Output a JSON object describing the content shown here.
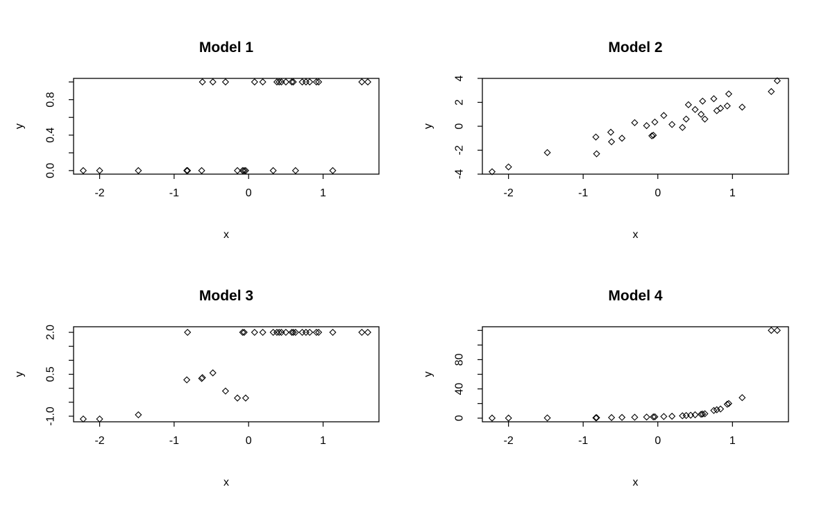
{
  "chart_data": [
    {
      "type": "scatter",
      "title": "Model 1",
      "xlabel": "x",
      "ylabel": "y",
      "xlim": [
        -2.35,
        1.75
      ],
      "ylim": [
        -0.04,
        1.04
      ],
      "xticks": [
        -2,
        -1,
        0,
        1
      ],
      "xtick_labels": [
        "-2",
        "-1",
        "0",
        "1"
      ],
      "yticks": [
        0.0,
        0.2,
        0.4,
        0.6,
        0.8,
        1.0
      ],
      "ytick_labels": [
        "0.0",
        "",
        "0.4",
        "",
        "0.8",
        ""
      ],
      "grid": false,
      "points": [
        {
          "x": -2.22,
          "y": 0
        },
        {
          "x": -2.0,
          "y": 0
        },
        {
          "x": -1.48,
          "y": 0
        },
        {
          "x": -0.83,
          "y": 0
        },
        {
          "x": -0.82,
          "y": 0
        },
        {
          "x": -0.63,
          "y": 0
        },
        {
          "x": -0.15,
          "y": 0
        },
        {
          "x": -0.08,
          "y": 0
        },
        {
          "x": -0.06,
          "y": 0
        },
        {
          "x": -0.04,
          "y": 0
        },
        {
          "x": 0.33,
          "y": 0
        },
        {
          "x": 0.63,
          "y": 0
        },
        {
          "x": 1.13,
          "y": 0
        },
        {
          "x": -0.62,
          "y": 1
        },
        {
          "x": -0.48,
          "y": 1
        },
        {
          "x": -0.31,
          "y": 1
        },
        {
          "x": 0.08,
          "y": 1
        },
        {
          "x": 0.19,
          "y": 1
        },
        {
          "x": 0.38,
          "y": 1
        },
        {
          "x": 0.41,
          "y": 1
        },
        {
          "x": 0.44,
          "y": 1
        },
        {
          "x": 0.5,
          "y": 1
        },
        {
          "x": 0.58,
          "y": 1
        },
        {
          "x": 0.6,
          "y": 1
        },
        {
          "x": 0.72,
          "y": 1
        },
        {
          "x": 0.77,
          "y": 1
        },
        {
          "x": 0.82,
          "y": 1
        },
        {
          "x": 0.91,
          "y": 1
        },
        {
          "x": 0.94,
          "y": 1
        },
        {
          "x": 1.52,
          "y": 1
        },
        {
          "x": 1.6,
          "y": 1
        }
      ]
    },
    {
      "type": "scatter",
      "title": "Model 2",
      "xlabel": "x",
      "ylabel": "y",
      "xlim": [
        -2.35,
        1.75
      ],
      "ylim": [
        -4.0,
        4.0
      ],
      "xticks": [
        -2,
        -1,
        0,
        1
      ],
      "xtick_labels": [
        "-2",
        "-1",
        "0",
        "1"
      ],
      "yticks": [
        -4,
        -2,
        0,
        2,
        4
      ],
      "ytick_labels": [
        "-4",
        "-2",
        "0",
        "2",
        "4"
      ],
      "grid": false,
      "points": [
        {
          "x": -2.22,
          "y": -3.8
        },
        {
          "x": -2.0,
          "y": -3.4
        },
        {
          "x": -1.48,
          "y": -2.2
        },
        {
          "x": -0.83,
          "y": -0.9
        },
        {
          "x": -0.82,
          "y": -2.3
        },
        {
          "x": -0.63,
          "y": -0.5
        },
        {
          "x": -0.62,
          "y": -1.3
        },
        {
          "x": -0.48,
          "y": -1.0
        },
        {
          "x": -0.31,
          "y": 0.3
        },
        {
          "x": -0.15,
          "y": 0.05
        },
        {
          "x": -0.08,
          "y": -0.8
        },
        {
          "x": -0.06,
          "y": -0.75
        },
        {
          "x": -0.04,
          "y": 0.35
        },
        {
          "x": 0.08,
          "y": 0.9
        },
        {
          "x": 0.19,
          "y": 0.15
        },
        {
          "x": 0.33,
          "y": -0.1
        },
        {
          "x": 0.38,
          "y": 0.6
        },
        {
          "x": 0.41,
          "y": 1.8
        },
        {
          "x": 0.5,
          "y": 1.4
        },
        {
          "x": 0.58,
          "y": 1.0
        },
        {
          "x": 0.6,
          "y": 2.1
        },
        {
          "x": 0.63,
          "y": 0.6
        },
        {
          "x": 0.75,
          "y": 2.3
        },
        {
          "x": 0.79,
          "y": 1.3
        },
        {
          "x": 0.84,
          "y": 1.5
        },
        {
          "x": 0.93,
          "y": 1.7
        },
        {
          "x": 0.95,
          "y": 2.7
        },
        {
          "x": 1.13,
          "y": 1.6
        },
        {
          "x": 1.52,
          "y": 2.9
        },
        {
          "x": 1.6,
          "y": 3.8
        }
      ]
    },
    {
      "type": "scatter",
      "title": "Model 3",
      "xlabel": "x",
      "ylabel": "y",
      "xlim": [
        -2.35,
        1.75
      ],
      "ylim": [
        -1.2,
        2.2
      ],
      "xticks": [
        -2,
        -1,
        0,
        1
      ],
      "xtick_labels": [
        "-2",
        "-1",
        "0",
        "1"
      ],
      "yticks": [
        -1.0,
        -0.5,
        0.0,
        0.5,
        1.0,
        1.5,
        2.0
      ],
      "ytick_labels": [
        "-1.0",
        "",
        "",
        "0.5",
        "",
        "",
        "2.0"
      ],
      "grid": false,
      "points": [
        {
          "x": -2.22,
          "y": -1.1
        },
        {
          "x": -2.0,
          "y": -1.1
        },
        {
          "x": -1.48,
          "y": -0.95
        },
        {
          "x": -0.83,
          "y": 0.3
        },
        {
          "x": -0.82,
          "y": 2.0
        },
        {
          "x": -0.63,
          "y": 0.35
        },
        {
          "x": -0.62,
          "y": 0.38
        },
        {
          "x": -0.48,
          "y": 0.55
        },
        {
          "x": -0.31,
          "y": -0.1
        },
        {
          "x": -0.15,
          "y": -0.35
        },
        {
          "x": -0.08,
          "y": 2.0
        },
        {
          "x": -0.06,
          "y": 2.0
        },
        {
          "x": -0.04,
          "y": -0.35
        },
        {
          "x": 0.08,
          "y": 2.0
        },
        {
          "x": 0.19,
          "y": 2.0
        },
        {
          "x": 0.33,
          "y": 2.0
        },
        {
          "x": 0.38,
          "y": 2.0
        },
        {
          "x": 0.41,
          "y": 2.0
        },
        {
          "x": 0.44,
          "y": 2.0
        },
        {
          "x": 0.5,
          "y": 2.0
        },
        {
          "x": 0.58,
          "y": 2.0
        },
        {
          "x": 0.6,
          "y": 2.0
        },
        {
          "x": 0.63,
          "y": 2.0
        },
        {
          "x": 0.72,
          "y": 2.0
        },
        {
          "x": 0.77,
          "y": 2.0
        },
        {
          "x": 0.82,
          "y": 2.0
        },
        {
          "x": 0.91,
          "y": 2.0
        },
        {
          "x": 0.94,
          "y": 2.0
        },
        {
          "x": 1.13,
          "y": 2.0
        },
        {
          "x": 1.52,
          "y": 2.0
        },
        {
          "x": 1.6,
          "y": 2.0
        }
      ]
    },
    {
      "type": "scatter",
      "title": "Model 4",
      "xlabel": "x",
      "ylabel": "y",
      "xlim": [
        -2.35,
        1.75
      ],
      "ylim": [
        -5,
        125
      ],
      "xticks": [
        -2,
        -1,
        0,
        1
      ],
      "xtick_labels": [
        "-2",
        "-1",
        "0",
        "1"
      ],
      "yticks": [
        0,
        20,
        40,
        60,
        80,
        100,
        120
      ],
      "ytick_labels": [
        "0",
        "",
        "40",
        "",
        "80",
        "",
        ""
      ],
      "grid": false,
      "points": [
        {
          "x": -2.22,
          "y": 0.1
        },
        {
          "x": -2.0,
          "y": 0.1
        },
        {
          "x": -1.48,
          "y": 0.3
        },
        {
          "x": -0.83,
          "y": 0.5
        },
        {
          "x": -0.82,
          "y": 0.6
        },
        {
          "x": -0.62,
          "y": 0.8
        },
        {
          "x": -0.48,
          "y": 1.0
        },
        {
          "x": -0.31,
          "y": 1.2
        },
        {
          "x": -0.15,
          "y": 1.5
        },
        {
          "x": -0.06,
          "y": 1.7
        },
        {
          "x": -0.04,
          "y": 1.8
        },
        {
          "x": 0.08,
          "y": 2.2
        },
        {
          "x": 0.19,
          "y": 2.6
        },
        {
          "x": 0.33,
          "y": 3.2
        },
        {
          "x": 0.38,
          "y": 3.6
        },
        {
          "x": 0.44,
          "y": 4.0
        },
        {
          "x": 0.5,
          "y": 4.6
        },
        {
          "x": 0.58,
          "y": 5.3
        },
        {
          "x": 0.6,
          "y": 5.6
        },
        {
          "x": 0.63,
          "y": 6.0
        },
        {
          "x": 0.75,
          "y": 10.5
        },
        {
          "x": 0.79,
          "y": 11.5
        },
        {
          "x": 0.84,
          "y": 12.5
        },
        {
          "x": 0.93,
          "y": 19.0
        },
        {
          "x": 0.95,
          "y": 20.0
        },
        {
          "x": 1.13,
          "y": 28.0
        },
        {
          "x": 1.52,
          "y": 120.0
        },
        {
          "x": 1.6,
          "y": 120.0
        }
      ]
    }
  ]
}
